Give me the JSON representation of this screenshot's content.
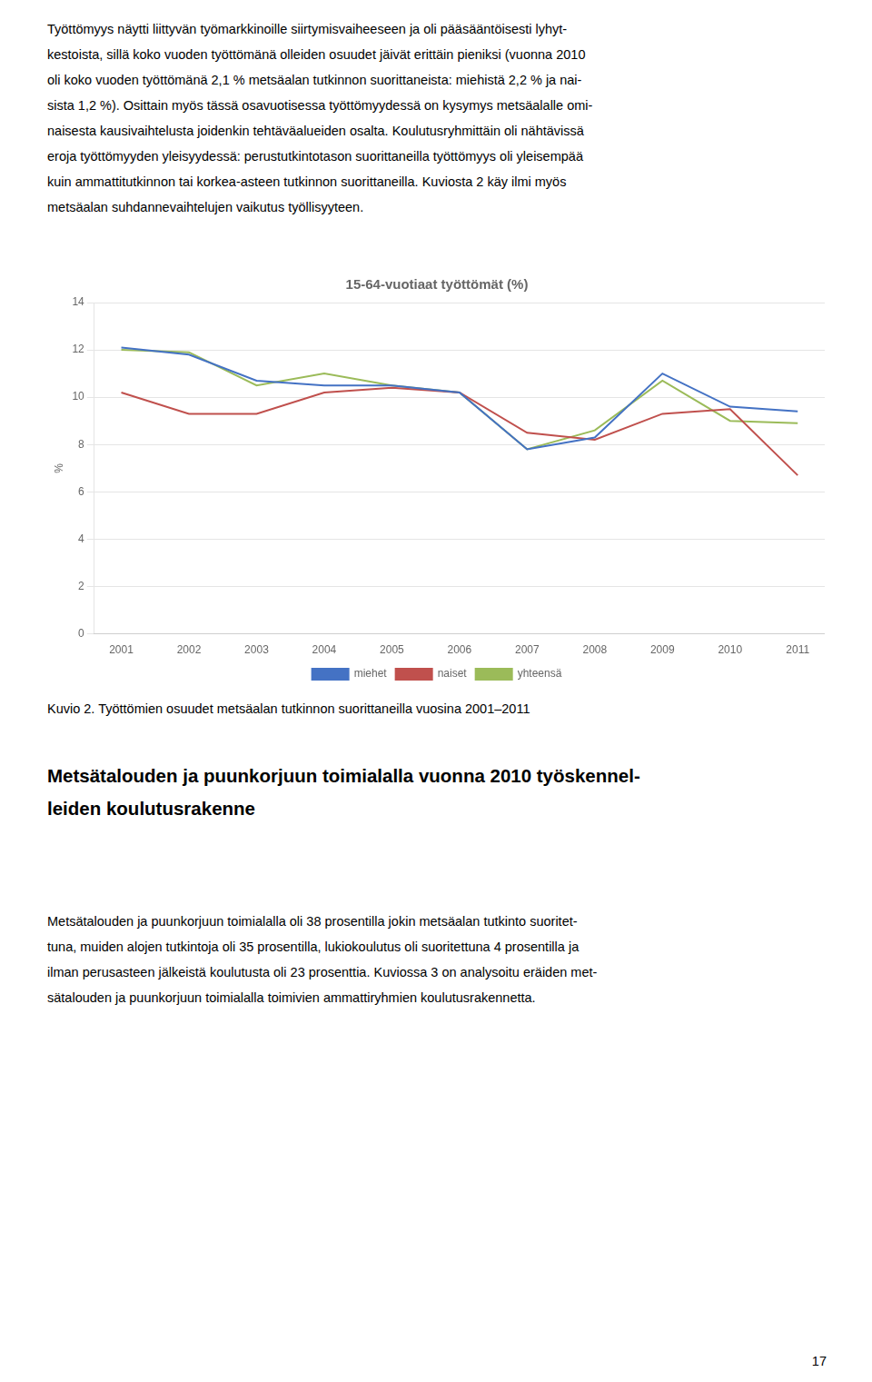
{
  "chart_data": {
    "type": "line",
    "title": "15-64-vuotiaat työttömät (%)",
    "y_label": "%",
    "x": [
      2001,
      2002,
      2003,
      2004,
      2005,
      2006,
      2007,
      2008,
      2009,
      2010,
      2011
    ],
    "series": [
      {
        "name": "miehet",
        "color": "#4472C4",
        "values": [
          12.1,
          11.8,
          10.7,
          10.5,
          10.5,
          10.2,
          7.8,
          8.3,
          11.0,
          9.6,
          9.4
        ]
      },
      {
        "name": "naiset",
        "color": "#C0504D",
        "values": [
          10.2,
          9.3,
          9.3,
          10.2,
          10.4,
          10.2,
          8.5,
          8.2,
          9.3,
          9.5,
          6.7
        ]
      },
      {
        "name": "yhteensä",
        "color": "#9BBB59",
        "values": [
          12.0,
          11.9,
          10.5,
          11.0,
          10.5,
          10.2,
          7.8,
          8.6,
          10.7,
          9.0,
          8.9
        ]
      }
    ],
    "xlim": [
      2000.6,
      2011.4
    ],
    "xticks": [
      2001,
      2002,
      2003,
      2004,
      2005,
      2006,
      2007,
      2008,
      2009,
      2010,
      2011
    ],
    "ylim": [
      0,
      14
    ],
    "yticks": [
      0,
      2,
      4,
      6,
      8,
      10,
      12,
      14
    ],
    "grid": "y",
    "legend": "bottom"
  },
  "paragraphs": [
    [
      "Työttömyys näytti liittyvän työmarkkinoille siirtymisvaiheeseen ja oli pääsääntöisesti lyhyt-",
      "kestoista, sillä koko vuoden työttömänä olleiden osuudet jäivät erittäin pieniksi (vuonna 2010",
      "oli koko vuoden työttömänä 2,1 % metsäalan tutkinnon suorittaneista: miehistä 2,2 % ja nai-",
      "sista 1,2 %). Osittain myös tässä osavuotisessa työttömyydessä on kysymys metsäalalle omi-",
      "naisesta kausivaihtelusta joidenkin tehtäväalueiden osalta. Koulutusryhmittäin oli nähtävissä",
      "eroja työttömyyden yleisyydessä: perustutkintotason suorittaneilla työttömyys oli yleisempää",
      "kuin ammattitutkinnon tai korkea-asteen tutkinnon suorittaneilla. Kuviosta 2 käy ilmi myös",
      "metsäalan suhdannevaihtelujen vaikutus työllisyyteen."
    ],
    [
      "Metsätalouden ja puunkorjuun toimialalla oli 38 prosentilla jokin metsäalan tutkinto suoritet-",
      "tuna, muiden alojen tutkintoja oli 35 prosentilla, lukiokoulutus oli suoritettuna 4 prosentilla ja",
      "ilman perusasteen jälkeistä koulutusta oli 23 prosenttia. Kuviossa 3 on analysoitu eräiden met-",
      "sätalouden ja puunkorjuun toimialalla toimivien ammattiryhmien koulutusrakennetta."
    ]
  ],
  "caption": "Kuvio 2. Työttömien osuudet metsäalan tutkinnon suorittaneilla vuosina 2001–2011",
  "heading": [
    "Metsätalouden ja puunkorjuun toimialalla vuonna 2010 työskennel-",
    "leiden koulutusrakenne"
  ],
  "page_number": "17"
}
